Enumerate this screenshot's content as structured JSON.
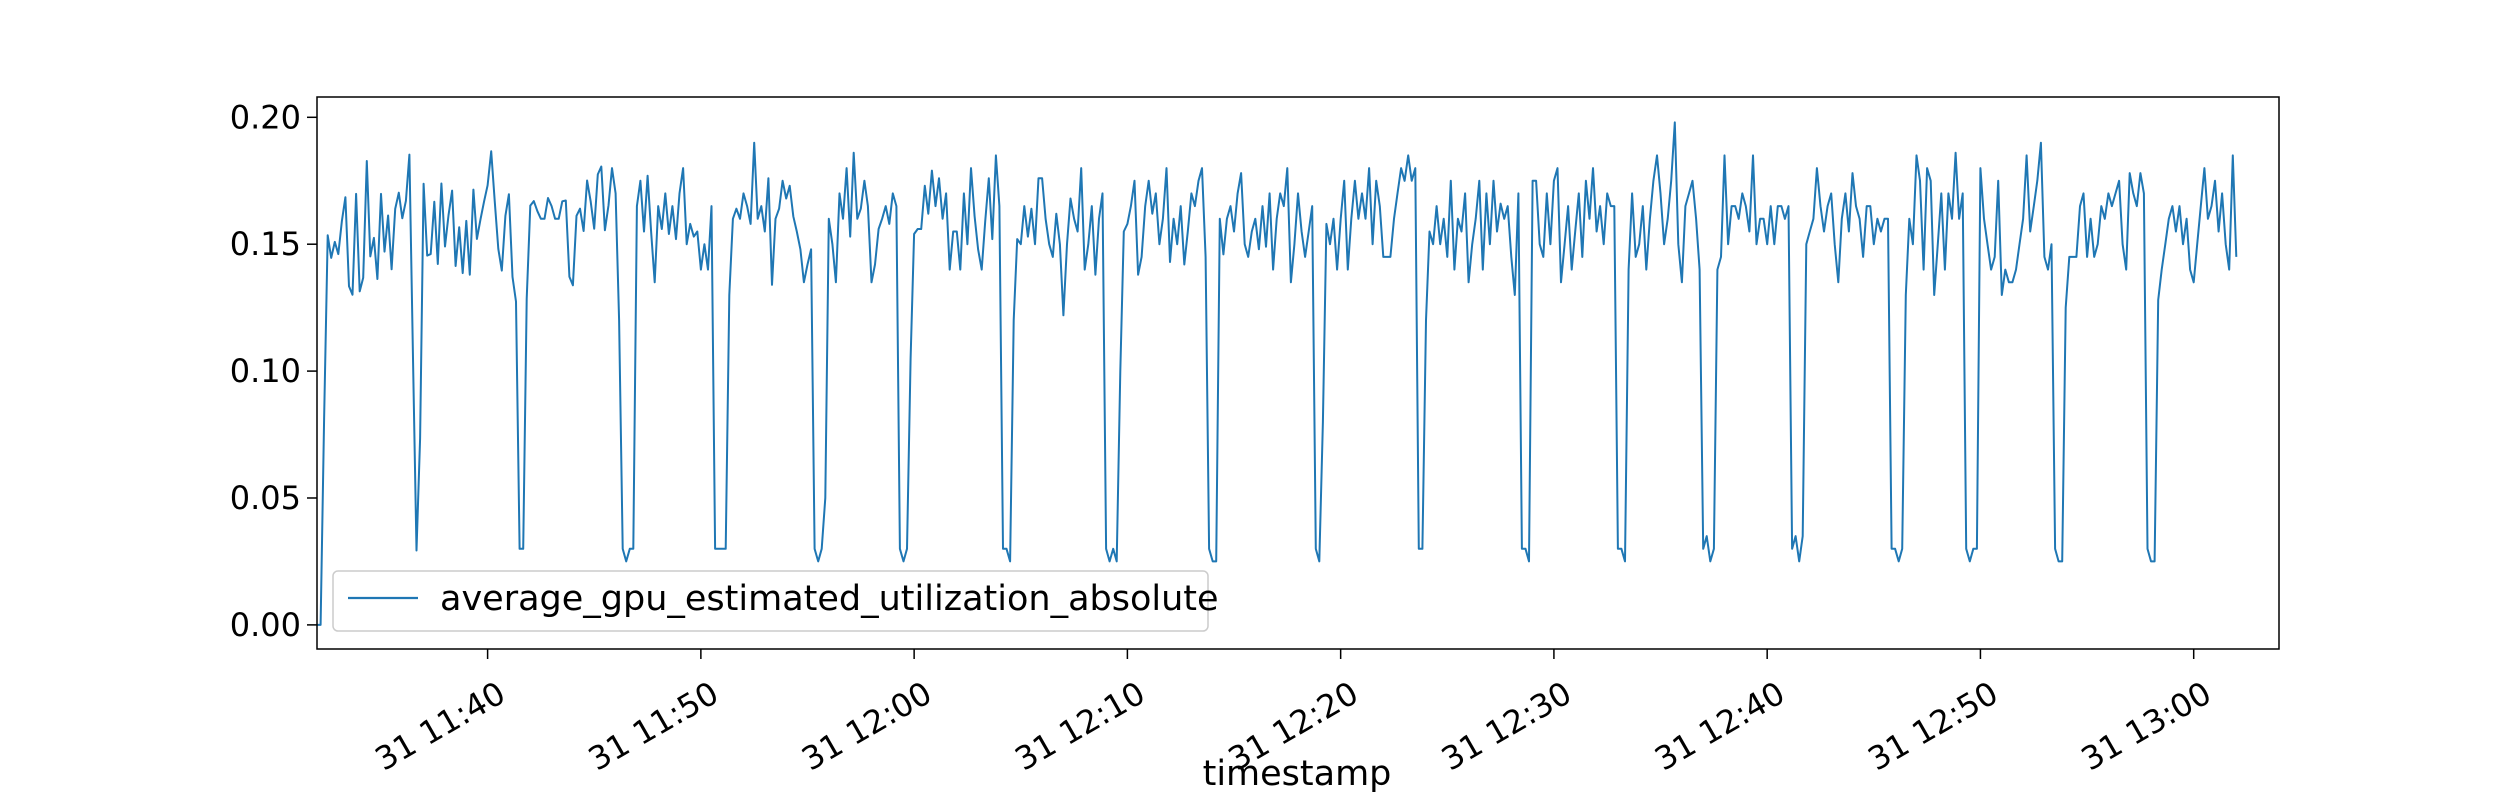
{
  "chart_data": {
    "type": "line",
    "title": "",
    "xlabel": "timestamp",
    "ylabel": "",
    "x_range": [
      "2024-12-31 11:32",
      "2024-12-31 13:04"
    ],
    "ylim": [
      -0.0095,
      0.208
    ],
    "grid": false,
    "legend_location": "lower-left",
    "x_ticks": [
      "31 11:40",
      "31 11:50",
      "31 12:00",
      "31 12:10",
      "31 12:20",
      "31 12:30",
      "31 12:40",
      "31 12:50",
      "31 13:00"
    ],
    "y_ticks": [
      "0.00",
      "0.05",
      "0.10",
      "0.15",
      "0.20"
    ],
    "series": [
      {
        "name": "average_gpu_estimated_utilization_absolute",
        "color": "#1f77b4",
        "x_start": "2024-12-31 11:32",
        "sample_interval_seconds": 10,
        "values": [
          0.0,
          0.0,
          0.0811,
          0.1535,
          0.1446,
          0.1509,
          0.1461,
          0.1592,
          0.1685,
          0.1334,
          0.1301,
          0.1698,
          0.1314,
          0.1368,
          0.1828,
          0.1452,
          0.1525,
          0.1363,
          0.1698,
          0.1471,
          0.1613,
          0.1401,
          0.1639,
          0.1703,
          0.1602,
          0.1671,
          0.1853,
          0.105,
          0.0293,
          0.0735,
          0.1738,
          0.1455,
          0.1461,
          0.1667,
          0.1422,
          0.1739,
          0.1491,
          0.1614,
          0.1711,
          0.1414,
          0.1567,
          0.1386,
          0.1592,
          0.138,
          0.1715,
          0.1521,
          0.1598,
          0.1669,
          0.1732,
          0.1866,
          0.1671,
          0.1482,
          0.1396,
          0.1612,
          0.1697,
          0.1371,
          0.1274,
          0.03,
          0.03,
          0.1285,
          0.1652,
          0.167,
          0.163,
          0.16,
          0.16,
          0.1682,
          0.165,
          0.16,
          0.16,
          0.1669,
          0.1672,
          0.1372,
          0.1338,
          0.1612,
          0.164,
          0.1552,
          0.1751,
          0.1668,
          0.1561,
          0.1775,
          0.1806,
          0.1555,
          0.1653,
          0.18,
          0.17,
          0.12,
          0.03,
          0.025,
          0.03,
          0.03,
          0.165,
          0.175,
          0.155,
          0.177,
          0.155,
          0.135,
          0.165,
          0.156,
          0.17,
          0.154,
          0.165,
          0.152,
          0.17,
          0.18,
          0.15,
          0.158,
          0.153,
          0.155,
          0.14,
          0.15,
          0.14,
          0.165,
          0.03,
          0.03,
          0.03,
          0.03,
          0.13,
          0.16,
          0.164,
          0.16,
          0.17,
          0.165,
          0.158,
          0.19,
          0.16,
          0.165,
          0.155,
          0.176,
          0.134,
          0.16,
          0.164,
          0.175,
          0.168,
          0.173,
          0.161,
          0.155,
          0.148,
          0.135,
          0.142,
          0.148,
          0.03,
          0.025,
          0.03,
          0.05,
          0.16,
          0.15,
          0.135,
          0.17,
          0.16,
          0.18,
          0.153,
          0.186,
          0.16,
          0.164,
          0.175,
          0.165,
          0.135,
          0.142,
          0.156,
          0.16,
          0.165,
          0.158,
          0.17,
          0.165,
          0.03,
          0.025,
          0.03,
          0.105,
          0.154,
          0.156,
          0.156,
          0.173,
          0.162,
          0.179,
          0.165,
          0.176,
          0.16,
          0.17,
          0.14,
          0.155,
          0.155,
          0.14,
          0.17,
          0.15,
          0.18,
          0.161,
          0.148,
          0.14,
          0.159,
          0.176,
          0.152,
          0.185,
          0.165,
          0.03,
          0.03,
          0.025,
          0.12,
          0.152,
          0.15,
          0.165,
          0.153,
          0.164,
          0.15,
          0.176,
          0.176,
          0.16,
          0.15,
          0.145,
          0.162,
          0.15,
          0.122,
          0.15,
          0.168,
          0.16,
          0.155,
          0.18,
          0.14,
          0.15,
          0.165,
          0.138,
          0.16,
          0.17,
          0.03,
          0.025,
          0.03,
          0.025,
          0.1,
          0.155,
          0.158,
          0.165,
          0.175,
          0.138,
          0.145,
          0.165,
          0.175,
          0.162,
          0.17,
          0.15,
          0.16,
          0.18,
          0.143,
          0.16,
          0.15,
          0.165,
          0.142,
          0.155,
          0.17,
          0.165,
          0.175,
          0.18,
          0.145,
          0.03,
          0.025,
          0.025,
          0.16,
          0.146,
          0.16,
          0.165,
          0.155,
          0.17,
          0.178,
          0.15,
          0.145,
          0.155,
          0.16,
          0.148,
          0.165,
          0.149,
          0.17,
          0.14,
          0.16,
          0.17,
          0.165,
          0.18,
          0.135,
          0.15,
          0.17,
          0.155,
          0.145,
          0.155,
          0.165,
          0.03,
          0.025,
          0.08,
          0.158,
          0.15,
          0.16,
          0.14,
          0.16,
          0.175,
          0.14,
          0.16,
          0.175,
          0.16,
          0.17,
          0.16,
          0.18,
          0.15,
          0.175,
          0.165,
          0.145,
          0.145,
          0.145,
          0.16,
          0.17,
          0.18,
          0.175,
          0.185,
          0.175,
          0.18,
          0.03,
          0.03,
          0.12,
          0.155,
          0.15,
          0.165,
          0.15,
          0.16,
          0.145,
          0.175,
          0.14,
          0.16,
          0.155,
          0.17,
          0.135,
          0.15,
          0.16,
          0.175,
          0.14,
          0.17,
          0.15,
          0.175,
          0.155,
          0.166,
          0.16,
          0.165,
          0.145,
          0.13,
          0.17,
          0.03,
          0.03,
          0.025,
          0.175,
          0.175,
          0.15,
          0.145,
          0.17,
          0.15,
          0.175,
          0.18,
          0.135,
          0.15,
          0.165,
          0.14,
          0.155,
          0.17,
          0.145,
          0.175,
          0.16,
          0.18,
          0.155,
          0.165,
          0.15,
          0.17,
          0.165,
          0.165,
          0.03,
          0.03,
          0.025,
          0.14,
          0.17,
          0.145,
          0.15,
          0.165,
          0.14,
          0.16,
          0.175,
          0.185,
          0.17,
          0.15,
          0.16,
          0.175,
          0.198,
          0.15,
          0.135,
          0.165,
          0.17,
          0.175,
          0.16,
          0.14,
          0.03,
          0.035,
          0.025,
          0.03,
          0.14,
          0.145,
          0.185,
          0.15,
          0.165,
          0.165,
          0.16,
          0.17,
          0.165,
          0.155,
          0.185,
          0.15,
          0.16,
          0.16,
          0.15,
          0.165,
          0.15,
          0.165,
          0.165,
          0.16,
          0.165,
          0.03,
          0.035,
          0.025,
          0.035,
          0.15,
          0.155,
          0.16,
          0.18,
          0.165,
          0.155,
          0.165,
          0.17,
          0.15,
          0.135,
          0.16,
          0.17,
          0.155,
          0.178,
          0.165,
          0.16,
          0.145,
          0.165,
          0.165,
          0.15,
          0.16,
          0.155,
          0.16,
          0.16,
          0.03,
          0.03,
          0.025,
          0.03,
          0.13,
          0.16,
          0.15,
          0.185,
          0.175,
          0.14,
          0.18,
          0.175,
          0.13,
          0.15,
          0.17,
          0.14,
          0.17,
          0.16,
          0.186,
          0.16,
          0.17,
          0.03,
          0.025,
          0.03,
          0.03,
          0.18,
          0.16,
          0.15,
          0.14,
          0.145,
          0.175,
          0.13,
          0.14,
          0.135,
          0.135,
          0.14,
          0.15,
          0.16,
          0.185,
          0.155,
          0.165,
          0.175,
          0.19,
          0.145,
          0.14,
          0.15,
          0.03,
          0.025,
          0.025,
          0.125,
          0.145,
          0.145,
          0.145,
          0.165,
          0.17,
          0.145,
          0.16,
          0.145,
          0.15,
          0.165,
          0.16,
          0.17,
          0.165,
          0.17,
          0.175,
          0.15,
          0.14,
          0.178,
          0.17,
          0.165,
          0.178,
          0.17,
          0.03,
          0.025,
          0.025,
          0.128,
          0.14,
          0.15,
          0.16,
          0.165,
          0.155,
          0.165,
          0.15,
          0.16,
          0.14,
          0.135,
          0.15,
          0.165,
          0.18,
          0.16,
          0.165,
          0.175,
          0.155,
          0.17,
          0.15,
          0.14,
          0.185,
          0.145
        ]
      }
    ]
  }
}
